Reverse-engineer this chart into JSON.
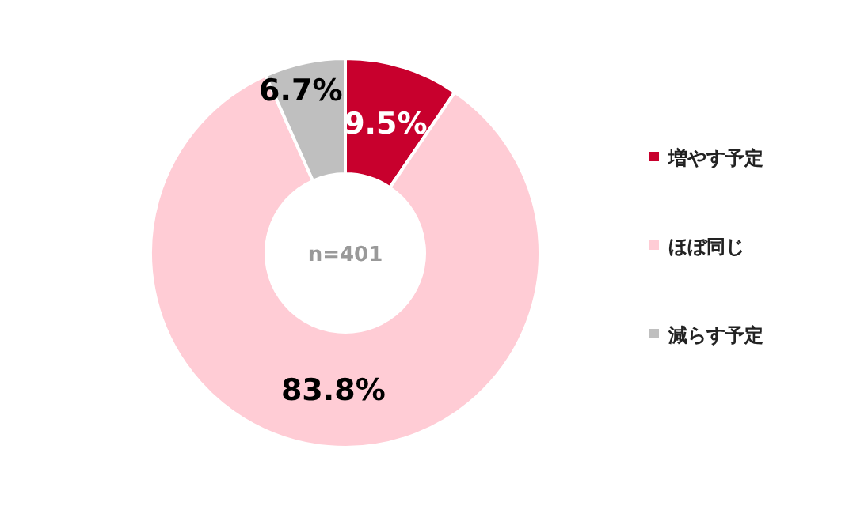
{
  "chart_data": {
    "type": "donut",
    "categories": [
      "増やす予定",
      "ほぼ同じ",
      "減らす予定"
    ],
    "values": [
      9.5,
      83.8,
      6.7
    ],
    "colors": [
      "#c8002d",
      "#ffccd5",
      "#bfbfbf"
    ],
    "value_labels": [
      "9.5%",
      "83.8%",
      "6.7%"
    ],
    "legend": "right",
    "annotations": [
      "n=401"
    ]
  }
}
